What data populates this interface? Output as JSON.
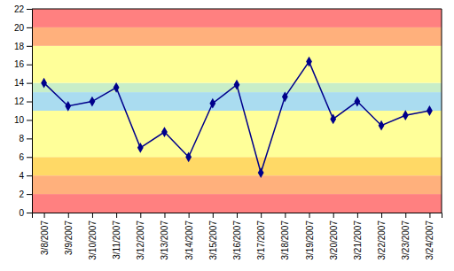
{
  "chart_data": {
    "type": "line",
    "categories": [
      "3/8/2007",
      "3/9/2007",
      "3/10/2007",
      "3/11/2007",
      "3/12/2007",
      "3/13/2007",
      "3/14/2007",
      "3/15/2007",
      "3/16/2007",
      "3/17/2007",
      "3/18/2007",
      "3/19/2007",
      "3/20/2007",
      "3/21/2007",
      "3/22/2007",
      "3/23/2007",
      "3/24/2007"
    ],
    "values": [
      14,
      11.5,
      12,
      13.5,
      7,
      8.7,
      6,
      11.8,
      13.8,
      4.3,
      12.5,
      16.3,
      10.1,
      12,
      9.4,
      10.5,
      11
    ],
    "color": "#00008B",
    "marker": "diamond",
    "ylim": [
      0,
      22
    ],
    "yticks": [
      0,
      2,
      4,
      6,
      8,
      10,
      12,
      14,
      16,
      18,
      20,
      22
    ],
    "grid": false,
    "bands": [
      {
        "ymin": 0,
        "ymax": 2,
        "color": "#FF8080"
      },
      {
        "ymin": 2,
        "ymax": 4,
        "color": "#FFB07C"
      },
      {
        "ymin": 4,
        "ymax": 6,
        "color": "#FFD966"
      },
      {
        "ymin": 6,
        "ymax": 11,
        "color": "#FFFF99"
      },
      {
        "ymin": 11,
        "ymax": 13,
        "color": "#AADCF0"
      },
      {
        "ymin": 13,
        "ymax": 14,
        "color": "#C8EEC8"
      },
      {
        "ymin": 14,
        "ymax": 18,
        "color": "#FFFF99"
      },
      {
        "ymin": 18,
        "ymax": 20,
        "color": "#FFB07C"
      },
      {
        "ymin": 20,
        "ymax": 22,
        "color": "#FF8080"
      }
    ]
  }
}
